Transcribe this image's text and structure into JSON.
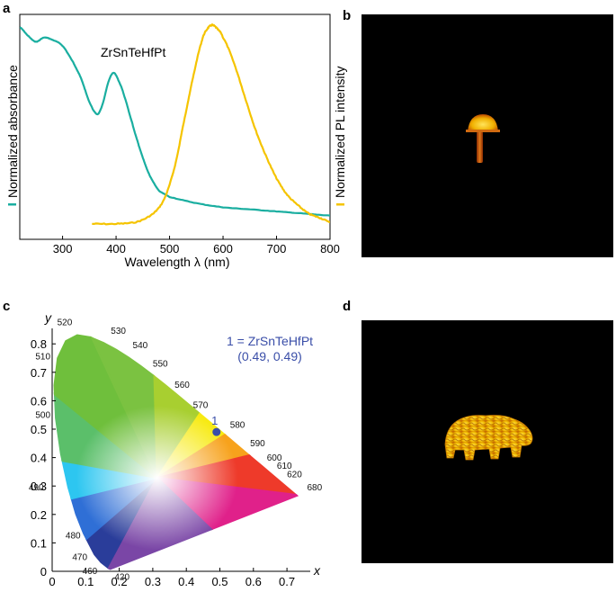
{
  "panel_letters": [
    "a",
    "b",
    "c",
    "d"
  ],
  "chart_data": [
    {
      "panel": "a",
      "type": "line",
      "title": "",
      "annotation": "ZrSnTeHfPt",
      "xlabel": "Wavelength λ (nm)",
      "ylabel_left": "Normalized absorbance",
      "ylabel_right": "Normalized PL intensity",
      "xlim": [
        220,
        800
      ],
      "ylim": [
        0,
        1
      ],
      "xticks": [
        300,
        400,
        500,
        600,
        700,
        800
      ],
      "series": [
        {
          "name": "absorbance",
          "color": "#1aaea0",
          "x": [
            220,
            235,
            250,
            265,
            280,
            300,
            320,
            335,
            350,
            365,
            375,
            385,
            395,
            405,
            415,
            430,
            440,
            450,
            460,
            470,
            480,
            500,
            550,
            600,
            650,
            700,
            750,
            800
          ],
          "y": [
            0.99,
            0.95,
            0.92,
            0.94,
            0.93,
            0.9,
            0.82,
            0.74,
            0.63,
            0.57,
            0.62,
            0.72,
            0.77,
            0.73,
            0.66,
            0.53,
            0.44,
            0.36,
            0.29,
            0.24,
            0.2,
            0.17,
            0.14,
            0.12,
            0.11,
            0.1,
            0.09,
            0.08
          ]
        },
        {
          "name": "PL emission",
          "color": "#f5c400",
          "x": [
            355,
            400,
            440,
            470,
            490,
            510,
            530,
            545,
            560,
            570,
            580,
            590,
            600,
            620,
            640,
            660,
            680,
            700,
            720,
            740,
            760,
            780,
            800
          ],
          "y": [
            0.04,
            0.04,
            0.05,
            0.09,
            0.16,
            0.32,
            0.57,
            0.76,
            0.92,
            0.98,
            1.0,
            0.98,
            0.94,
            0.82,
            0.66,
            0.5,
            0.37,
            0.26,
            0.18,
            0.13,
            0.09,
            0.07,
            0.05
          ]
        }
      ]
    },
    {
      "panel": "c",
      "type": "scatter",
      "title": "",
      "xlabel": "x",
      "ylabel": "y",
      "xlim": [
        0,
        0.75
      ],
      "ylim": [
        0,
        0.85
      ],
      "xticks": [
        "0",
        "0.1",
        "0.2",
        "0.3",
        "0.4",
        "0.5",
        "0.6",
        "0.7"
      ],
      "yticks": [
        "0",
        "0.1",
        "0.2",
        "0.3",
        "0.4",
        "0.5",
        "0.6",
        "0.7",
        "0.8"
      ],
      "locus_wavelength_labels": [
        "420",
        "460",
        "470",
        "480",
        "490",
        "500",
        "510",
        "520",
        "530",
        "540",
        "550",
        "560",
        "570",
        "580",
        "590",
        "600",
        "610",
        "620",
        "680"
      ],
      "points": [
        {
          "label": "1",
          "x": 0.49,
          "y": 0.49,
          "color": "#3a4ea8"
        }
      ],
      "legend": {
        "line1": "1 = ZrSnTeHfPt",
        "line2": "(0.49, 0.49)"
      }
    }
  ],
  "images": {
    "b": "mushroom-emission-image",
    "d": "bear-emission-image"
  }
}
